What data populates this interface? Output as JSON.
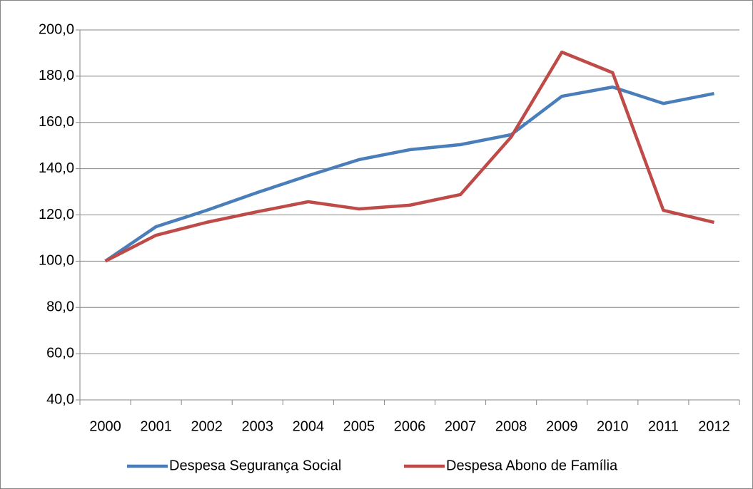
{
  "chart_data": {
    "type": "line",
    "categories": [
      "2000",
      "2001",
      "2002",
      "2003",
      "2004",
      "2005",
      "2006",
      "2007",
      "2008",
      "2009",
      "2010",
      "2011",
      "2012"
    ],
    "series": [
      {
        "name": "Despesa Segurança Social",
        "color": "#4a7ebb",
        "values": [
          100,
          114.9,
          122,
          129.7,
          137,
          143.9,
          148.2,
          150.4,
          154.7,
          171.3,
          175.3,
          168.2,
          172.5
        ]
      },
      {
        "name": "Despesa Abono de Família",
        "color": "#be4b48",
        "values": [
          100,
          111.2,
          116.8,
          121.4,
          125.7,
          122.6,
          124.2,
          128.8,
          153.7,
          190.4,
          181.5,
          122,
          116.8
        ]
      }
    ],
    "ylim": [
      40,
      200
    ],
    "yticks": [
      {
        "value": 40,
        "label": "40,0"
      },
      {
        "value": 60,
        "label": "60,0"
      },
      {
        "value": 80,
        "label": "80,0"
      },
      {
        "value": 100,
        "label": "100,0"
      },
      {
        "value": 120,
        "label": "120,0"
      },
      {
        "value": 140,
        "label": "140,0"
      },
      {
        "value": 160,
        "label": "160,0"
      },
      {
        "value": 180,
        "label": "180,0"
      },
      {
        "value": 200,
        "label": "200,0"
      }
    ],
    "grid": true,
    "legend": "bottom"
  }
}
